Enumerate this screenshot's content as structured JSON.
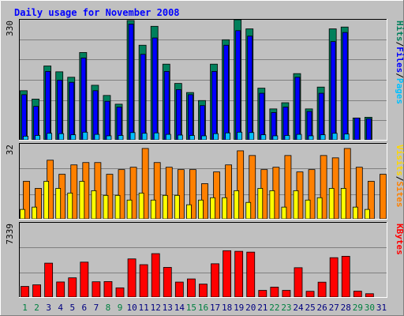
{
  "chart_data": [
    {
      "type": "bar",
      "title": "Daily usage for November 2008",
      "max_label": "330",
      "right_labels": [
        {
          "text": "Hits",
          "color": "#00805C"
        },
        {
          "text": "/",
          "color": "#000000"
        },
        {
          "text": "Files",
          "color": "#0000FF"
        },
        {
          "text": "/",
          "color": "#000000"
        },
        {
          "text": "Pages",
          "color": "#00C0FF"
        }
      ],
      "ylim": [
        0,
        330
      ],
      "categories": [
        "1",
        "2",
        "3",
        "4",
        "5",
        "6",
        "7",
        "8",
        "9",
        "10",
        "11",
        "12",
        "13",
        "14",
        "15",
        "16",
        "17",
        "18",
        "19",
        "20",
        "21",
        "22",
        "23",
        "24",
        "25",
        "26",
        "27",
        "28",
        "29",
        "30",
        "31"
      ],
      "category_colors": [
        "#008040",
        "#008040",
        "#000080",
        "#000080",
        "#000080",
        "#000080",
        "#000080",
        "#008040",
        "#008040",
        "#000080",
        "#000080",
        "#000080",
        "#000080",
        "#000080",
        "#008040",
        "#008040",
        "#000080",
        "#000080",
        "#000080",
        "#000080",
        "#000080",
        "#008040",
        "#008040",
        "#000080",
        "#000080",
        "#000080",
        "#000080",
        "#000080",
        "#008040",
        "#008040",
        "#000080"
      ],
      "series": [
        {
          "name": "Hits",
          "color": "#00805C",
          "values": [
            135,
            112,
            203,
            187,
            172,
            240,
            150,
            122,
            98,
            328,
            260,
            312,
            208,
            155,
            130,
            108,
            208,
            275,
            330,
            305,
            142,
            85,
            102,
            182,
            85,
            145,
            305,
            310,
            60,
            62,
            0
          ]
        },
        {
          "name": "Files",
          "color": "#0000FF",
          "values": [
            124,
            92,
            188,
            164,
            158,
            225,
            135,
            106,
            90,
            318,
            235,
            280,
            188,
            138,
            124,
            94,
            188,
            260,
            300,
            285,
            128,
            75,
            90,
            172,
            78,
            128,
            270,
            295,
            60,
            58,
            0
          ]
        },
        {
          "name": "Pages",
          "color": "#00C0FF",
          "values": [
            10,
            12,
            18,
            17,
            14,
            21,
            15,
            11,
            12,
            20,
            18,
            19,
            15,
            13,
            12,
            11,
            17,
            19,
            21,
            20,
            14,
            11,
            12,
            15,
            11,
            14,
            18,
            16,
            0,
            0,
            0
          ]
        }
      ]
    },
    {
      "type": "bar",
      "max_label": "32",
      "right_labels": [
        {
          "text": "Visits",
          "color": "#FFD700"
        },
        {
          "text": "/",
          "color": "#000000"
        },
        {
          "text": "Sites",
          "color": "#FF8000"
        }
      ],
      "ylim": [
        0,
        32
      ],
      "series": [
        {
          "name": "Visits",
          "color": "#FF8000",
          "values": [
            16,
            13,
            25,
            19,
            23,
            24,
            24,
            19,
            21,
            22,
            30,
            24,
            22,
            21,
            21,
            15,
            20,
            23,
            29,
            27,
            21,
            22,
            27,
            20,
            21,
            27,
            26,
            30,
            22,
            16,
            19
          ]
        },
        {
          "name": "Sites",
          "color": "#FFFF00",
          "values": [
            4,
            5,
            16,
            13,
            11,
            16,
            12,
            10,
            10,
            8,
            11,
            8,
            10,
            10,
            6,
            8,
            9,
            9,
            12,
            7,
            13,
            12,
            5,
            12,
            8,
            9,
            13,
            13,
            5,
            4,
            0
          ]
        }
      ]
    },
    {
      "type": "bar",
      "max_label": "7339",
      "right_labels": [
        {
          "text": "KBytes",
          "color": "#FF0000"
        }
      ],
      "ylim": [
        0,
        7339
      ],
      "series": [
        {
          "name": "KBytes",
          "color": "#FF0000",
          "values": [
            1050,
            1210,
            3350,
            1490,
            1900,
            3450,
            1510,
            1530,
            910,
            3770,
            3200,
            4290,
            2930,
            1480,
            1790,
            1280,
            3290,
            4580,
            4520,
            4440,
            660,
            980,
            660,
            2900,
            570,
            1470,
            3890,
            4030,
            580,
            330,
            0
          ]
        }
      ]
    }
  ]
}
